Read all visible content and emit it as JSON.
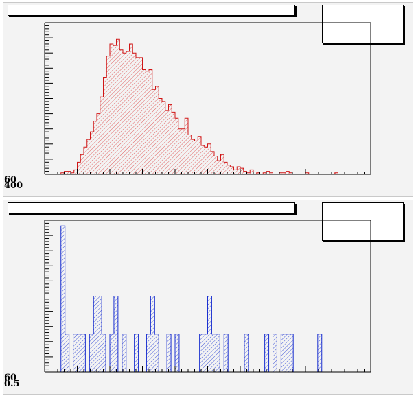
{
  "chart_data": [
    {
      "type": "bar",
      "style": "histogram-hatched",
      "title": "",
      "xlabel": "",
      "ylabel": "",
      "grid": false,
      "colors": {
        "line": "#d01515",
        "fill_hatch": "#e06060"
      },
      "y_axis_labels": [
        "60",
        "400"
      ],
      "xlim": [
        0,
        100
      ],
      "ylim": [
        0,
        100
      ],
      "values": [
        0,
        0,
        0,
        0,
        0,
        1,
        2,
        2,
        1,
        3,
        8,
        13,
        18,
        23,
        28,
        35,
        40,
        51,
        64,
        78,
        86,
        85,
        89,
        82,
        80,
        81,
        86,
        80,
        77,
        77,
        69,
        68,
        69,
        56,
        58,
        50,
        48,
        42,
        46,
        41,
        37,
        30,
        30,
        37,
        26,
        23,
        22,
        25,
        19,
        18,
        20,
        15,
        12,
        9,
        13,
        8,
        6,
        5,
        3,
        5,
        4,
        2,
        1,
        3,
        0,
        1,
        0,
        1,
        2,
        1,
        0,
        0,
        1,
        1,
        2,
        1,
        0,
        0,
        0,
        0,
        1,
        0,
        0,
        0,
        0,
        0,
        0,
        0,
        0,
        1,
        0,
        0,
        0,
        0,
        0,
        0,
        0,
        0,
        0,
        0
      ]
    },
    {
      "type": "bar",
      "style": "histogram-hatched",
      "title": "",
      "xlabel": "",
      "ylabel": "",
      "grid": false,
      "colors": {
        "line": "#1a2fd0",
        "fill_hatch": "#4055d8"
      },
      "y_axis_labels": [
        "60",
        "0.5"
      ],
      "xlim": [
        0,
        80
      ],
      "ylim": [
        0,
        8
      ],
      "values": [
        0,
        0,
        0,
        0,
        7.7,
        2,
        0,
        2,
        2,
        2,
        0,
        2,
        4,
        4,
        2,
        0,
        2,
        4,
        0,
        2,
        0,
        0,
        2,
        0,
        0,
        2,
        4,
        2,
        0,
        0,
        2,
        0,
        2,
        0,
        0,
        0,
        0,
        0,
        2,
        2,
        4,
        2,
        2,
        0,
        2,
        0,
        0,
        0,
        0,
        2,
        0,
        0,
        0,
        0,
        2,
        0,
        2,
        0,
        2,
        2,
        2,
        0,
        0,
        0,
        0,
        0,
        0,
        2,
        0,
        0,
        0,
        0,
        0,
        0,
        0,
        0,
        0,
        0,
        0,
        0
      ]
    }
  ]
}
